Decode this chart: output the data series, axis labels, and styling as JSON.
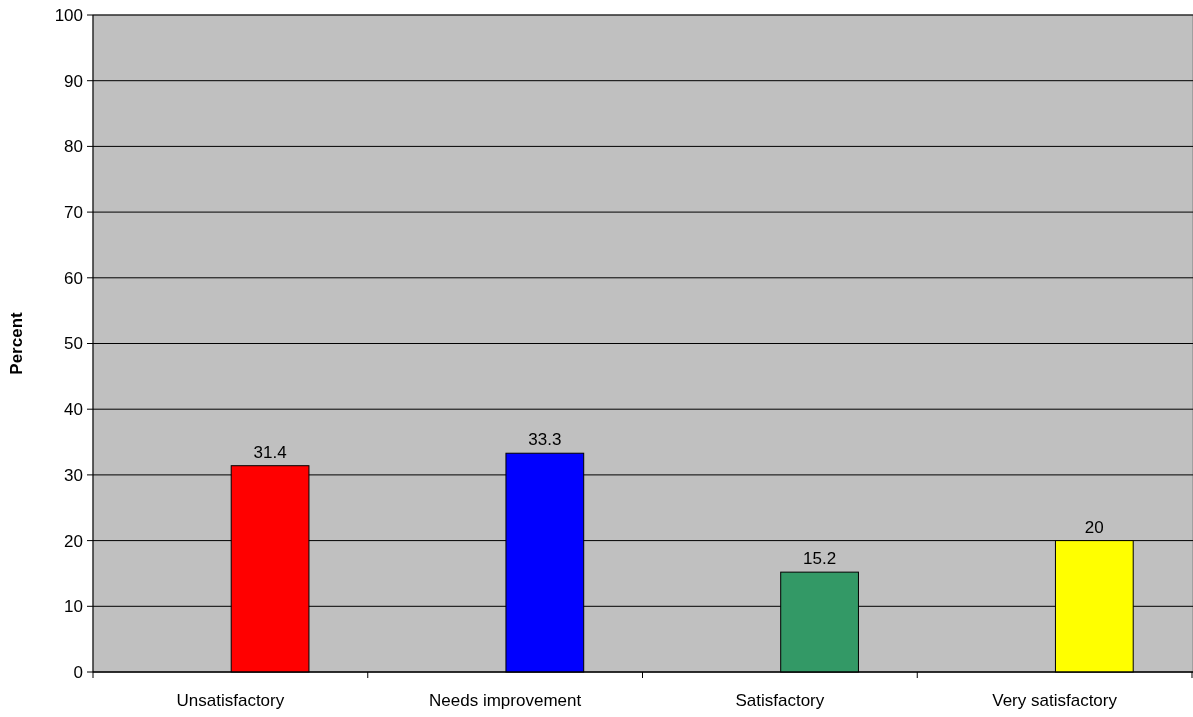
{
  "chart_data": {
    "type": "bar",
    "ylabel": "Percent",
    "categories": [
      "Unsatisfactory",
      "Needs improvement",
      "Satisfactory",
      "Very satisfactory"
    ],
    "values": [
      31.4,
      33.3,
      15.2,
      20
    ],
    "colors": [
      "#ff0000",
      "#0000ff",
      "#339966",
      "#ffff00"
    ],
    "ylim": [
      0,
      100
    ],
    "yticks": [
      0,
      10,
      20,
      30,
      40,
      50,
      60,
      70,
      80,
      90,
      100
    ],
    "grid": "y",
    "data_labels": true
  }
}
